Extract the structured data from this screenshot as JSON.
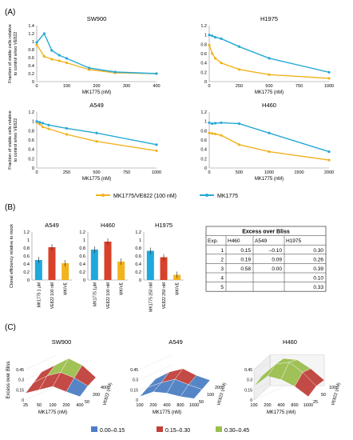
{
  "panels": {
    "a": "(A)",
    "b": "(B)",
    "c": "(C)"
  },
  "colors": {
    "combo": "#f2b31e",
    "mono": "#25a9d6",
    "mk": "#1fa8dc",
    "ve": "#d8412a",
    "mkve": "#f2b31e",
    "low": "#4e7fc4",
    "mid": "#c0413c",
    "high": "#9bbf4f"
  },
  "chart_data": [
    {
      "type": "line",
      "title": "SW900",
      "xlabel": "MK1775 (nM)",
      "ylabel": "Fraction of viable cells relative to control w/wo VE822",
      "xlim": [
        0,
        400
      ],
      "ylim": [
        0,
        1.4
      ],
      "xticks": [
        0,
        100,
        200,
        300,
        400
      ],
      "yticks": [
        0,
        0.2,
        0.4,
        0.6,
        0.8,
        1,
        1.2,
        1.4
      ],
      "series": [
        {
          "name": "MK1775/VE822 (100 nM)",
          "x": [
            0,
            25,
            50,
            75,
            100,
            175,
            262,
            400
          ],
          "y": [
            0.92,
            0.63,
            0.56,
            0.52,
            0.47,
            0.3,
            0.22,
            0.2
          ]
        },
        {
          "name": "MK1775",
          "x": [
            0,
            25,
            50,
            75,
            100,
            175,
            262,
            400
          ],
          "y": [
            0.98,
            1.2,
            0.78,
            0.66,
            0.58,
            0.34,
            0.24,
            0.2
          ]
        }
      ]
    },
    {
      "type": "line",
      "title": "H1975",
      "xlabel": "MK1775 (nM)",
      "ylabel": "",
      "xlim": [
        0,
        1000
      ],
      "ylim": [
        0,
        1.2
      ],
      "xticks": [
        0,
        250,
        500,
        750,
        1000
      ],
      "yticks": [
        0,
        0.2,
        0.4,
        0.6,
        0.8,
        1,
        1.2
      ],
      "series": [
        {
          "name": "MK1775/VE822 (100 nM)",
          "x": [
            0,
            25,
            50,
            100,
            250,
            500,
            1000
          ],
          "y": [
            0.78,
            0.6,
            0.5,
            0.4,
            0.26,
            0.15,
            0.07
          ]
        },
        {
          "name": "MK1775",
          "x": [
            0,
            25,
            50,
            100,
            250,
            500,
            1000
          ],
          "y": [
            1.0,
            0.98,
            0.95,
            0.92,
            0.75,
            0.5,
            0.2
          ]
        }
      ]
    },
    {
      "type": "line",
      "title": "A549",
      "xlabel": "MK1775 (nM)",
      "ylabel": "Fraction of viable cells relative to control w/wo VE822",
      "xlim": [
        0,
        1000
      ],
      "ylim": [
        0,
        1.2
      ],
      "xticks": [
        0,
        250,
        500,
        750,
        1000
      ],
      "yticks": [
        0,
        0.2,
        0.4,
        0.6,
        0.8,
        1,
        1.2
      ],
      "series": [
        {
          "name": "MK1775/VE822 (100 nM)",
          "x": [
            0,
            25,
            50,
            100,
            250,
            500,
            1000
          ],
          "y": [
            0.98,
            0.94,
            0.88,
            0.84,
            0.72,
            0.57,
            0.37
          ]
        },
        {
          "name": "MK1775",
          "x": [
            0,
            25,
            50,
            100,
            250,
            500,
            1000
          ],
          "y": [
            1.0,
            0.98,
            0.96,
            0.92,
            0.85,
            0.75,
            0.5
          ]
        }
      ]
    },
    {
      "type": "line",
      "title": "H460",
      "xlabel": "MK1775 (nM)",
      "ylabel": "",
      "xlim": [
        0,
        2000
      ],
      "ylim": [
        0,
        1.2
      ],
      "xticks": [
        0,
        500,
        1000,
        1500,
        2000
      ],
      "yticks": [
        0,
        0.2,
        0.4,
        0.6,
        0.8,
        1,
        1.2
      ],
      "series": [
        {
          "name": "MK1775/VE822 (100 nM)",
          "x": [
            0,
            50,
            100,
            200,
            500,
            1000,
            2000
          ],
          "y": [
            0.75,
            0.74,
            0.73,
            0.7,
            0.5,
            0.35,
            0.17
          ]
        },
        {
          "name": "MK1775",
          "x": [
            0,
            50,
            100,
            200,
            500,
            1000,
            2000
          ],
          "y": [
            0.97,
            0.95,
            0.96,
            0.97,
            0.95,
            0.75,
            0.35
          ]
        }
      ]
    },
    {
      "type": "bar",
      "title": "A549",
      "ylabel": "Clonal efficiency relative to mock",
      "ylim": [
        0,
        1.2
      ],
      "yticks": [
        0,
        0.2,
        0.4,
        0.6,
        0.8,
        1,
        1.2
      ],
      "categories": [
        "MK1775 1 μM",
        "VE822 100 nM",
        "MK/VE"
      ],
      "values": [
        0.5,
        0.82,
        0.42
      ]
    },
    {
      "type": "bar",
      "title": "H460",
      "ylabel": "",
      "ylim": [
        0,
        1.2
      ],
      "yticks": [
        0,
        0.2,
        0.4,
        0.6,
        0.8,
        1,
        1.2
      ],
      "categories": [
        "MK1775 1μM",
        "VE822 100 nM",
        "MK/VE"
      ],
      "values": [
        0.76,
        0.96,
        0.46
      ]
    },
    {
      "type": "bar",
      "title": "H1975",
      "ylabel": "",
      "ylim": [
        0,
        1.2
      ],
      "yticks": [
        0,
        0.2,
        0.4,
        0.6,
        0.8,
        1,
        1.2
      ],
      "categories": [
        "MK1775 250 nM",
        "VE822 250 nM",
        "MK/VE"
      ],
      "values": [
        0.73,
        0.57,
        0.13
      ]
    },
    {
      "type": "table",
      "title": "Excess over Bliss",
      "columns": [
        "Exp.",
        "H460",
        "A549",
        "H1975"
      ],
      "rows": [
        [
          "1",
          "0.15",
          "–0.10",
          "0.30"
        ],
        [
          "2",
          "0.19",
          "0.09",
          "0.26"
        ],
        [
          "3",
          "0.58",
          "0.00",
          "0.39"
        ],
        [
          "4",
          "",
          "",
          "0.10"
        ],
        [
          "5",
          "",
          "",
          "0.33"
        ]
      ]
    },
    {
      "type": "heatmap",
      "title": "SW900",
      "xlabel": "MK1775 (nM)",
      "ylabel": "VE822 (nM)",
      "zlabel": "Excess over Bliss",
      "x": [
        "25",
        "50",
        "100",
        "200",
        "400"
      ],
      "y": [
        "50",
        "200",
        "400"
      ],
      "zticks": [
        "0",
        "0.15",
        "0.3",
        "0.45"
      ]
    },
    {
      "type": "heatmap",
      "title": "A549",
      "xlabel": "MK1775 (nM)",
      "ylabel": "VE822 (nM)",
      "x": [
        "100",
        "200",
        "400",
        "800",
        "1600"
      ],
      "y": [
        "50",
        "100",
        "200"
      ],
      "zticks": [
        "0",
        "0.15",
        "0.3",
        "0.45"
      ]
    },
    {
      "type": "heatmap",
      "title": "H460",
      "xlabel": "MK1775 (nM)",
      "ylabel": "VE822 (nM)",
      "x": [
        "100",
        "200",
        "400",
        "800",
        "1600"
      ],
      "y": [
        "25",
        "50",
        "100"
      ],
      "zticks": [
        "0",
        "0.15",
        "0.3",
        "0.45"
      ]
    }
  ],
  "legend_a": [
    "MK1775/VE822 (100 nM)",
    "MK1775"
  ],
  "legend_c": [
    "0.00–0.15",
    "0.15–0.30",
    "0.30–0.45"
  ]
}
